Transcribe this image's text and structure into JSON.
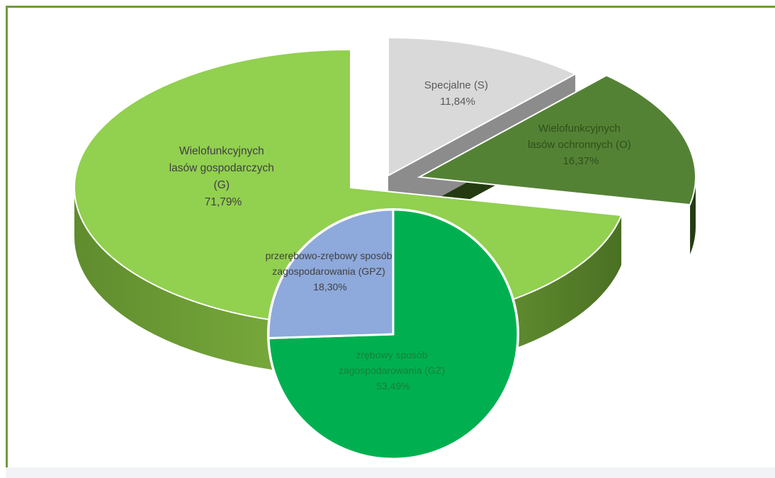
{
  "chart_data": {
    "type": "pie",
    "main_pie": {
      "slices": [
        {
          "label_lines": [
            "Specjalne (S)"
          ],
          "value_label": "11,84%",
          "value": 11.84,
          "color": "#d9d9d9",
          "side_color": "#8c8c8c",
          "text_color": "#595959"
        },
        {
          "label_lines": [
            "Wielofunkcyjnych",
            "lasów ochronnych (O)"
          ],
          "value_label": "16,37%",
          "value": 16.37,
          "color": "#548235",
          "side_color": "#243b12",
          "text_color": "#2f4f1a"
        },
        {
          "label_lines": [
            "Wielofunkcyjnych",
            "lasów gospodarczych",
            "(G)"
          ],
          "value_label": "71,79%",
          "value": 71.79,
          "color": "#92d050",
          "side_color": "#6a9a34",
          "text_color": "#404040"
        }
      ]
    },
    "sub_pie": {
      "slices": [
        {
          "label_lines": [
            "zrębowy sposób",
            "zagospodarowania (GZ)"
          ],
          "value_label": "53,49%",
          "value": 53.49,
          "color": "#00b050",
          "text_color": "#15803d"
        },
        {
          "label_lines": [
            "przerębowo-zrębowy sposób",
            "zagospodarowania (GPZ)"
          ],
          "value_label": "18,30%",
          "value": 18.3,
          "color": "#8ea9db",
          "text_color": "#404040"
        }
      ]
    }
  }
}
